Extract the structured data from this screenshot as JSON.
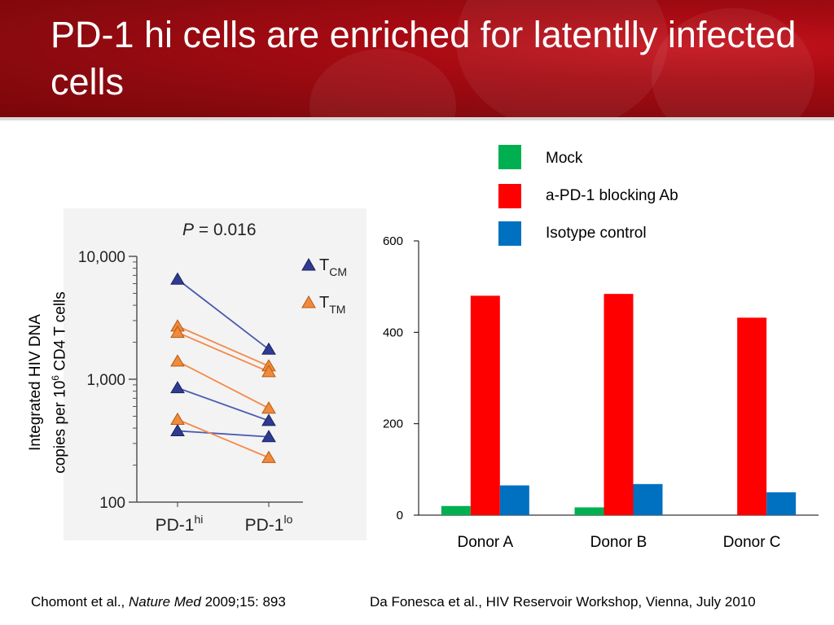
{
  "title": "PD-1 hi cells are enriched for latentlly infected cells",
  "citations": {
    "left_authors": "Chomont et al., ",
    "left_journal": "Nature Med",
    "left_rest": " 2009;15: 893",
    "right": "Da Fonesca et al., HIV Reservoir Workshop, Vienna, July 2010"
  },
  "colors": {
    "header_red": "#a50a12",
    "tcm": "#2f3b8f",
    "ttm": "#f08a3c",
    "mock": "#00b050",
    "blocking": "#ff0000",
    "isotype": "#0070c0"
  },
  "chart_data": [
    {
      "type": "scatter",
      "title": "",
      "annotation_p": "P",
      "annotation_value": " = 0.016",
      "ylabel_line1": "Integrated HIV DNA",
      "ylabel_line2_pre": "copies per 10",
      "ylabel_line2_sup": "6",
      "ylabel_line2_post": " CD4 T cells",
      "yscale": "log",
      "ylim": [
        100,
        10000
      ],
      "yticks": [
        "100",
        "1,000",
        "10,000"
      ],
      "x": [
        "PD-1hi",
        "PD-1lo"
      ],
      "xtick_labels": [
        {
          "base": "PD-1",
          "sup": "hi"
        },
        {
          "base": "PD-1",
          "sup": "lo"
        }
      ],
      "legend": [
        {
          "base": "T",
          "sub": "CM"
        },
        {
          "base": "T",
          "sub": "TM"
        }
      ],
      "series": [
        {
          "group": "TCM",
          "values": [
            6500,
            1750
          ]
        },
        {
          "group": "TCM",
          "values": [
            850,
            460
          ]
        },
        {
          "group": "TCM",
          "values": [
            380,
            340
          ]
        },
        {
          "group": "TTM",
          "values": [
            2700,
            1280
          ]
        },
        {
          "group": "TTM",
          "values": [
            2400,
            1150
          ]
        },
        {
          "group": "TTM",
          "values": [
            1400,
            580
          ]
        },
        {
          "group": "TTM",
          "values": [
            470,
            230
          ]
        }
      ]
    },
    {
      "type": "bar",
      "categories": [
        "Donor A",
        "Donor B",
        "Donor C"
      ],
      "ylim": [
        0,
        600
      ],
      "yticks": [
        0,
        200,
        400,
        600
      ],
      "series": [
        {
          "name": "Mock",
          "values": [
            20,
            17,
            0
          ]
        },
        {
          "name": "a-PD-1 blocking Ab",
          "values": [
            480,
            484,
            432
          ]
        },
        {
          "name": "Isotype control",
          "values": [
            65,
            68,
            50
          ]
        }
      ]
    }
  ]
}
